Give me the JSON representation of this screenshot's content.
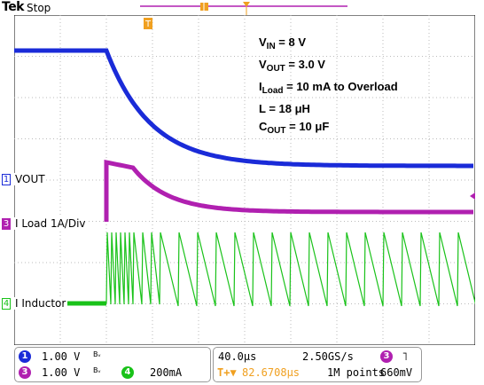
{
  "header": {
    "brand": "Tek",
    "state": "Stop"
  },
  "annotations": {
    "vin_sym": "V",
    "vin_sub": "IN",
    "vin_val": " = 8 V",
    "vout_sym": "V",
    "vout_sub": "OUT",
    "vout_val": " = 3.0 V",
    "iload_sym": "I",
    "iload_sub": "Load",
    "iload_val": " = 10 mA to Overload",
    "l_text": "L = 18 μH",
    "cout_sym": "C",
    "cout_sub": "OUT",
    "cout_val": " = 10 μF"
  },
  "channels": [
    {
      "num": "1",
      "label": "VOUT",
      "color": "#1a2bd8"
    },
    {
      "num": "3",
      "label": "I Load 1A/Div",
      "color": "#b020b0"
    },
    {
      "num": "4",
      "label": "I Inductor",
      "color": "#19c219"
    }
  ],
  "trigger_marker": "T",
  "status": {
    "ch1_num": "1",
    "ch1_scale": "1.00 V",
    "ch1_bw": "Bᵥ",
    "ch3_num": "3",
    "ch3_scale": "1.00 V",
    "ch3_bw": "Bᵥ",
    "ch4_num": "4",
    "ch4_scale": "200mA",
    "timebase": "40.0µs",
    "sample_rate": "2.50GS/s",
    "trig_pos": "82.6708µs",
    "record_len": "1M points",
    "trig_src": "3",
    "trig_slope": "˥",
    "trig_level": "660mV"
  },
  "colors": {
    "ch1": "#1a2bd8",
    "ch3": "#b020b0",
    "ch4": "#19c219",
    "trigger": "#f0a020",
    "grid": "#bbbbbb"
  }
}
